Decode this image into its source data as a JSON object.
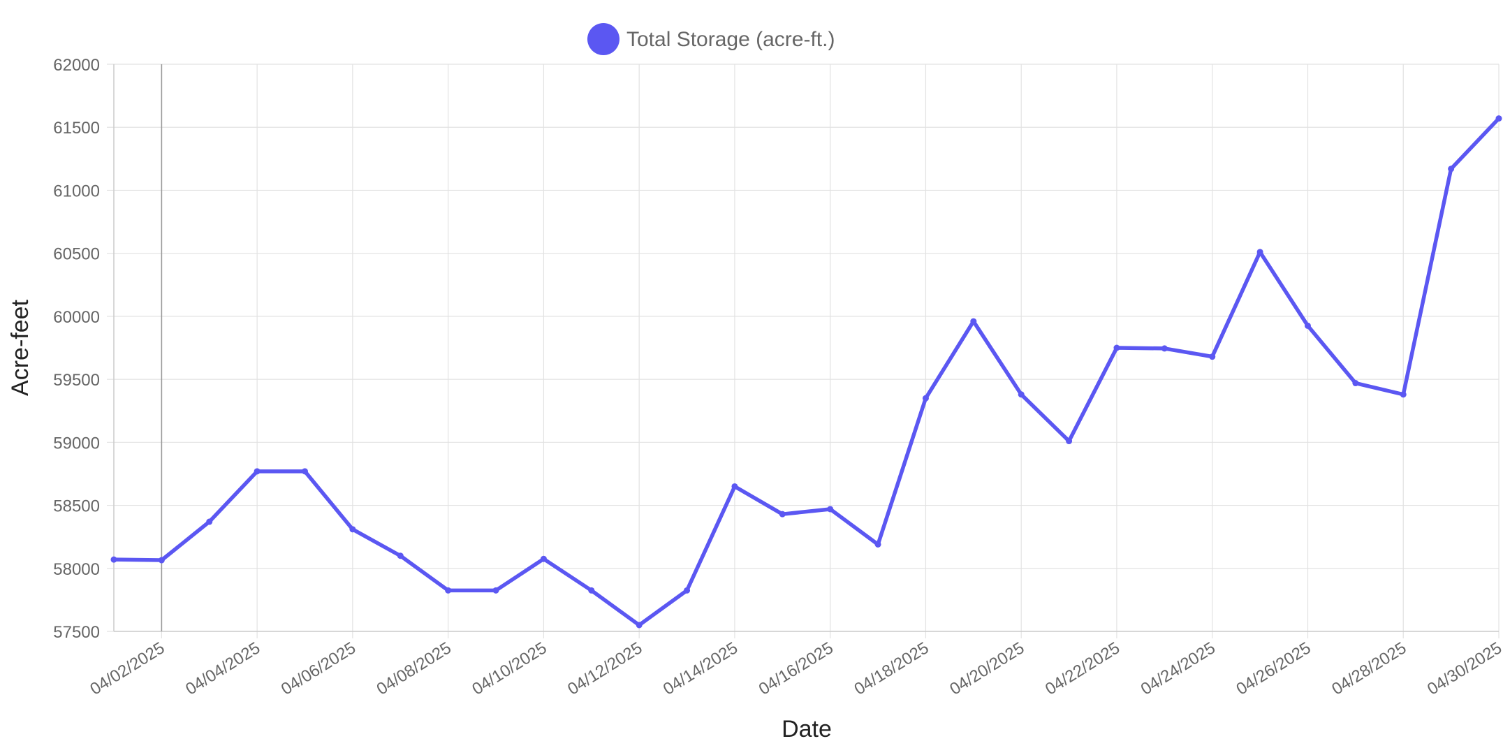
{
  "chart_data": {
    "type": "line",
    "title": "",
    "xlabel": "Date",
    "ylabel": "Acre-feet",
    "ylim": [
      57500,
      62000
    ],
    "y_ticks": [
      57500,
      58000,
      58500,
      59000,
      59500,
      60000,
      60500,
      61000,
      61500,
      62000
    ],
    "x_start": "04/01/2025",
    "x_end": "04/30/2025",
    "x_tick_labels": [
      "04/02/2025",
      "04/04/2025",
      "04/06/2025",
      "04/08/2025",
      "04/10/2025",
      "04/12/2025",
      "04/14/2025",
      "04/16/2025",
      "04/18/2025",
      "04/20/2025",
      "04/22/2025",
      "04/24/2025",
      "04/26/2025",
      "04/28/2025",
      "04/30/2025"
    ],
    "x": [
      "04/01/2025",
      "04/02/2025",
      "04/03/2025",
      "04/04/2025",
      "04/05/2025",
      "04/06/2025",
      "04/07/2025",
      "04/08/2025",
      "04/09/2025",
      "04/10/2025",
      "04/11/2025",
      "04/12/2025",
      "04/13/2025",
      "04/14/2025",
      "04/15/2025",
      "04/16/2025",
      "04/17/2025",
      "04/18/2025",
      "04/19/2025",
      "04/20/2025",
      "04/21/2025",
      "04/22/2025",
      "04/23/2025",
      "04/24/2025",
      "04/25/2025",
      "04/26/2025",
      "04/27/2025",
      "04/28/2025",
      "04/29/2025",
      "04/30/2025"
    ],
    "series": [
      {
        "name": "Total Storage (acre-ft.)",
        "color": "#5B57F2",
        "values": [
          58070,
          58065,
          58370,
          58770,
          58770,
          58310,
          58100,
          57825,
          57825,
          58075,
          57825,
          57550,
          57825,
          58650,
          58430,
          58470,
          58190,
          59350,
          59960,
          59380,
          59010,
          59750,
          59745,
          59680,
          60510,
          59925,
          59470,
          59380,
          61170,
          61570
        ]
      }
    ],
    "grid": true,
    "legend": "top-center"
  }
}
